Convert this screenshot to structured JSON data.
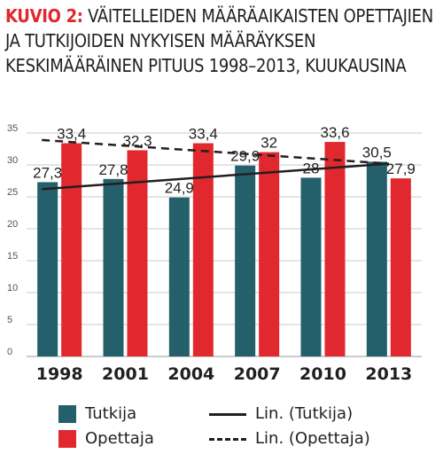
{
  "title": {
    "prefix": "KUVIO 2:",
    "text": "VÄITELLEIDEN MÄÄRÄAIKAISTEN OPETTAJIEN JA TUTKIJOIDEN NYKYISEN MÄÄRÄYKSEN KESKIMÄÄRÄINEN PITUUS 1998–2013, KUUKAUSINA"
  },
  "colors": {
    "tutkija": "#24606b",
    "opettaja": "#e0282e",
    "grid": "#c9c9c9",
    "text": "#231f20"
  },
  "chart_data": {
    "type": "bar",
    "categories": [
      "1998",
      "2001",
      "2004",
      "2007",
      "2010",
      "2013"
    ],
    "series": [
      {
        "name": "Tutkija",
        "values": [
          27.3,
          27.8,
          24.9,
          29.9,
          28,
          30.5
        ],
        "labels": [
          "27,3",
          "27,8",
          "24,9",
          "29,9",
          "28",
          "30,5"
        ]
      },
      {
        "name": "Opettaja",
        "values": [
          33.4,
          32.3,
          33.4,
          32,
          33.6,
          27.9
        ],
        "labels": [
          "33,4",
          "32,3",
          "33,4",
          "32",
          "33,6",
          "27,9"
        ]
      }
    ],
    "trendlines": [
      {
        "name": "Lin. (Tutkija)",
        "style": "solid",
        "start": 26.2,
        "end": 30.2
      },
      {
        "name": "Lin. (Opettaja)",
        "style": "dashed",
        "start": 33.9,
        "end": 30.2
      }
    ],
    "ylim": [
      0,
      35
    ],
    "yticks": [
      0,
      5,
      10,
      15,
      20,
      25,
      30,
      35
    ],
    "grid": true,
    "legend": "bottom"
  }
}
